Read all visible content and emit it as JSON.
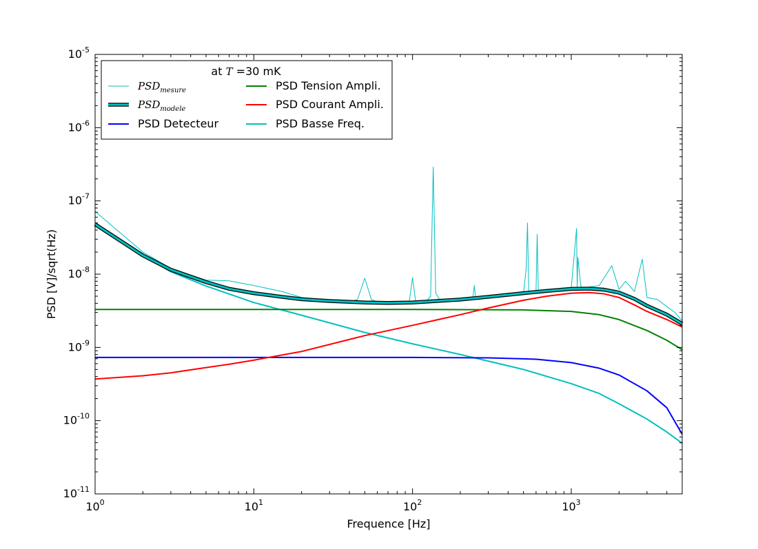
{
  "chart_data": {
    "type": "line",
    "title": "",
    "xlabel": "Frequence [Hz]",
    "ylabel": "PSD [V]/sqrt(Hz)",
    "xscale": "log",
    "yscale": "log",
    "xlim": [
      1,
      5000
    ],
    "ylim": [
      1e-11,
      1e-05
    ],
    "grid": false,
    "x_ticks": [
      {
        "value": 1,
        "base": "10",
        "exp": "0"
      },
      {
        "value": 10,
        "base": "10",
        "exp": "1"
      },
      {
        "value": 100,
        "base": "10",
        "exp": "2"
      },
      {
        "value": 1000,
        "base": "10",
        "exp": "3"
      }
    ],
    "y_ticks": [
      {
        "value": 1e-11,
        "base": "10",
        "exp": "-11"
      },
      {
        "value": 1e-10,
        "base": "10",
        "exp": "-10"
      },
      {
        "value": 1e-09,
        "base": "10",
        "exp": "-9"
      },
      {
        "value": 1e-08,
        "base": "10",
        "exp": "-8"
      },
      {
        "value": 1e-07,
        "base": "10",
        "exp": "-7"
      },
      {
        "value": 1e-06,
        "base": "10",
        "exp": "-6"
      },
      {
        "value": 1e-05,
        "base": "10",
        "exp": "-5"
      }
    ],
    "legend": {
      "placement": "top-left",
      "title_prefix": "at ",
      "title_var": "T",
      "title_suffix": " =30 mK",
      "entries": [
        {
          "main": "PSD",
          "sub": "mesure",
          "math": true,
          "series": "mesure"
        },
        {
          "main": "PSD",
          "sub": "modele",
          "math": true,
          "series": "modele"
        },
        {
          "main": "PSD Detecteur",
          "math": false,
          "series": "detecteur"
        },
        {
          "main": "PSD Tension Ampli.",
          "math": false,
          "series": "tension"
        },
        {
          "main": "PSD Courant Ampli.",
          "math": false,
          "series": "courant"
        },
        {
          "main": "PSD Basse Freq.",
          "math": false,
          "series": "basse"
        }
      ]
    },
    "series": [
      {
        "key": "detecteur",
        "name": "PSD Detecteur",
        "color": "#0000ff",
        "x": [
          1,
          10,
          100,
          300,
          600,
          1000,
          1500,
          2000,
          3000,
          4000,
          5000
        ],
        "y": [
          7.3e-10,
          7.3e-10,
          7.3e-10,
          7.2e-10,
          6.9e-10,
          6.2e-10,
          5.2e-10,
          4.2e-10,
          2.55e-10,
          1.5e-10,
          6.5e-11
        ]
      },
      {
        "key": "tension",
        "name": "PSD Tension Ampli.",
        "color": "#008000",
        "x": [
          1,
          10,
          100,
          500,
          1000,
          1500,
          2000,
          3000,
          4000,
          5000
        ],
        "y": [
          3.3e-09,
          3.3e-09,
          3.3e-09,
          3.25e-09,
          3.1e-09,
          2.8e-09,
          2.4e-09,
          1.7e-09,
          1.25e-09,
          9.3e-10
        ]
      },
      {
        "key": "courant",
        "name": "PSD Courant Ampli.",
        "color": "#ff0000",
        "x": [
          1,
          2,
          3,
          5,
          7,
          10,
          20,
          50,
          100,
          200,
          300,
          500,
          700,
          1000,
          1300,
          1600,
          2000,
          2500,
          3000,
          4000,
          5000
        ],
        "y": [
          3.7e-10,
          4.1e-10,
          4.5e-10,
          5.3e-10,
          5.9e-10,
          6.7e-10,
          8.8e-10,
          1.45e-09,
          2e-09,
          2.8e-09,
          3.45e-09,
          4.4e-09,
          5e-09,
          5.5e-09,
          5.6e-09,
          5.4e-09,
          4.8e-09,
          3.8e-09,
          3.1e-09,
          2.4e-09,
          1.9e-09
        ]
      },
      {
        "key": "basse",
        "name": "PSD Basse Freq.",
        "color": "#00bfbf",
        "x": [
          1,
          2,
          3,
          5,
          10,
          20,
          50,
          100,
          200,
          500,
          1000,
          1500,
          2000,
          3000,
          4000,
          5000
        ],
        "y": [
          4.7e-08,
          1.8e-08,
          1.08e-08,
          6.9e-09,
          4.1e-09,
          2.75e-09,
          1.6e-09,
          1.12e-09,
          8e-10,
          5e-10,
          3.2e-10,
          2.35e-10,
          1.7e-10,
          1.05e-10,
          7e-11,
          4.9e-11
        ]
      },
      {
        "key": "modele",
        "name": "PSD modele",
        "color": "#00bfbf",
        "x": [
          1,
          2,
          3,
          5,
          7,
          10,
          15,
          20,
          30,
          50,
          70,
          100,
          200,
          300,
          500,
          700,
          1000,
          1300,
          1600,
          2000,
          2500,
          3000,
          4000,
          5000
        ],
        "y": [
          4.8e-08,
          1.8e-08,
          1.15e-08,
          7.8e-09,
          6.3e-09,
          5.5e-09,
          4.9e-09,
          4.55e-09,
          4.3e-09,
          4.1e-09,
          4.05e-09,
          4.1e-09,
          4.5e-09,
          4.9e-09,
          5.5e-09,
          5.9e-09,
          6.3e-09,
          6.35e-09,
          6.15e-09,
          5.6e-09,
          4.6e-09,
          3.7e-09,
          2.8e-09,
          2.1e-09
        ]
      },
      {
        "key": "mesure",
        "name": "PSD mesure",
        "color": "#00bfbf",
        "x": [
          1,
          2,
          3,
          5,
          7,
          10,
          15,
          20,
          30,
          40,
          45,
          50,
          55,
          60,
          80,
          95,
          100,
          105,
          120,
          130,
          135,
          140,
          150,
          200,
          240,
          245,
          250,
          300,
          500,
          520,
          530,
          540,
          600,
          610,
          620,
          700,
          1000,
          1080,
          1090,
          1100,
          1150,
          1200,
          1500,
          1800,
          2000,
          2200,
          2500,
          2800,
          3000,
          3500,
          4000,
          4500,
          5000
        ],
        "y": [
          7.2e-08,
          2e-08,
          1.2e-08,
          8.3e-09,
          8.1e-09,
          7e-09,
          5.8e-09,
          4.8e-09,
          4.4e-09,
          4.2e-09,
          4.5e-09,
          8.8e-09,
          4.5e-09,
          4.2e-09,
          4.1e-09,
          4e-09,
          9e-09,
          4e-09,
          4.1e-09,
          5e-09,
          2.9e-07,
          5.5e-09,
          4.3e-09,
          4.5e-09,
          4.7e-09,
          7e-09,
          4.8e-09,
          5e-09,
          5.5e-09,
          1.2e-08,
          5e-08,
          5.8e-09,
          6e-09,
          3.5e-08,
          6e-09,
          6.2e-09,
          6.5e-09,
          4.2e-08,
          6.5e-09,
          1.7e-08,
          6.8e-09,
          6.5e-09,
          7e-09,
          1.3e-08,
          6.2e-09,
          8e-09,
          5.8e-09,
          1.6e-08,
          4.8e-09,
          4.5e-09,
          3.6e-09,
          3e-09,
          2.3e-09
        ]
      }
    ]
  }
}
